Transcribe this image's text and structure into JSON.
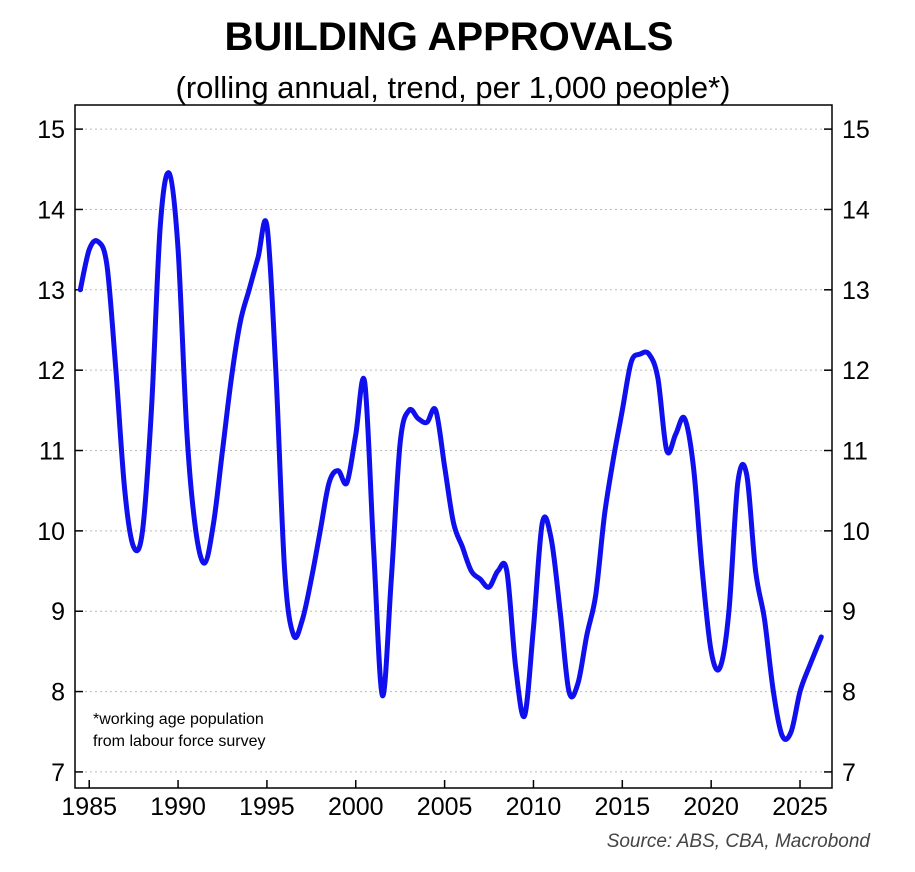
{
  "chart_data": {
    "type": "line",
    "title": "BUILDING APPROVALS",
    "subtitle": "(rolling annual, trend, per 1,000 people*)",
    "xlabel": "",
    "ylabel": "",
    "xlim": [
      1984.2,
      2026.8
    ],
    "ylim": [
      6.8,
      15.3
    ],
    "x_ticks": [
      1985,
      1990,
      1995,
      2000,
      2005,
      2010,
      2015,
      2020,
      2025
    ],
    "y_ticks": [
      7,
      8,
      9,
      10,
      11,
      12,
      13,
      14,
      15
    ],
    "y_axis_both_sides": true,
    "grid": "horizontal dotted",
    "legend": "none",
    "series": [
      {
        "color": "#1010ee",
        "x": [
          1984.5,
          1985.0,
          1985.5,
          1986.0,
          1986.5,
          1987.0,
          1987.5,
          1988.0,
          1988.5,
          1989.0,
          1989.5,
          1990.0,
          1990.5,
          1991.0,
          1991.5,
          1992.0,
          1992.5,
          1993.0,
          1993.5,
          1994.0,
          1994.5,
          1995.0,
          1995.5,
          1996.0,
          1996.5,
          1997.0,
          1997.5,
          1998.0,
          1998.5,
          1999.0,
          1999.5,
          2000.0,
          2000.5,
          2001.0,
          2001.5,
          2002.0,
          2002.5,
          2003.0,
          2003.5,
          2004.0,
          2004.5,
          2005.0,
          2005.5,
          2006.0,
          2006.5,
          2007.0,
          2007.5,
          2008.0,
          2008.5,
          2009.0,
          2009.5,
          2010.0,
          2010.5,
          2011.0,
          2011.5,
          2012.0,
          2012.5,
          2013.0,
          2013.5,
          2014.0,
          2014.5,
          2015.0,
          2015.5,
          2016.0,
          2016.5,
          2017.0,
          2017.5,
          2018.0,
          2018.5,
          2019.0,
          2019.5,
          2020.0,
          2020.5,
          2021.0,
          2021.5,
          2022.0,
          2022.5,
          2023.0,
          2023.5,
          2024.0,
          2024.5,
          2025.0,
          2025.5,
          2026.2
        ],
        "y": [
          13.0,
          13.5,
          13.6,
          13.3,
          12.0,
          10.5,
          9.8,
          10.0,
          11.5,
          13.8,
          14.45,
          13.5,
          11.2,
          10.0,
          9.6,
          10.1,
          11.0,
          11.9,
          12.6,
          13.0,
          13.4,
          13.8,
          12.0,
          9.5,
          8.7,
          8.9,
          9.4,
          10.0,
          10.6,
          10.75,
          10.6,
          11.2,
          11.85,
          9.8,
          7.95,
          9.4,
          11.1,
          11.5,
          11.4,
          11.35,
          11.5,
          10.8,
          10.1,
          9.8,
          9.5,
          9.4,
          9.3,
          9.5,
          9.5,
          8.3,
          7.7,
          8.8,
          10.1,
          9.9,
          9.0,
          8.0,
          8.1,
          8.7,
          9.2,
          10.2,
          10.9,
          11.5,
          12.1,
          12.2,
          12.2,
          11.9,
          11.0,
          11.2,
          11.4,
          10.8,
          9.5,
          8.5,
          8.3,
          9.0,
          10.6,
          10.7,
          9.5,
          8.9,
          8.0,
          7.45,
          7.5,
          8.0,
          8.3,
          8.68
        ]
      }
    ],
    "annotation": [
      "*working age population",
      "from labour force survey"
    ],
    "source": "Source: ABS, CBA, Macrobond"
  }
}
